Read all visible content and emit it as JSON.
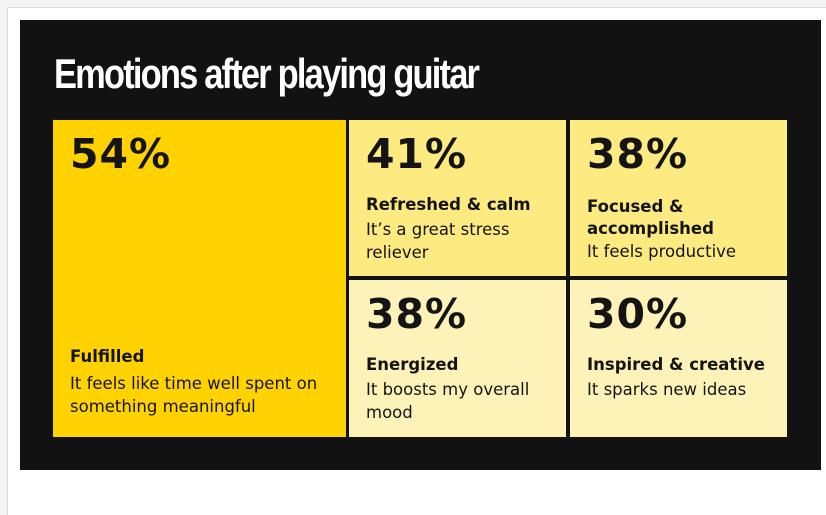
{
  "title": "Emotions after playing guitar",
  "colors": {
    "background": "#121212",
    "title_text": "#ffffff",
    "tile_text": "#141414",
    "level_1": "#ffd200",
    "level_2": "#fdea80",
    "level_3": "#fdf3b8"
  },
  "chart_data": {
    "type": "treemap",
    "title": "Emotions after playing guitar",
    "unit": "%",
    "items": [
      {
        "percent_label": "54%",
        "value": 54,
        "label": "Fulfilled",
        "description": "It feels like time well spent on something meaningful"
      },
      {
        "percent_label": "41%",
        "value": 41,
        "label": "Refreshed & calm",
        "description": "It’s a great stress reliever"
      },
      {
        "percent_label": "38%",
        "value": 38,
        "label": "Focused & accomplished",
        "description": "It feels productive"
      },
      {
        "percent_label": "38%",
        "value": 38,
        "label": "Energized",
        "description": "It boosts my overall mood"
      },
      {
        "percent_label": "30%",
        "value": 30,
        "label": "Inspired & creative",
        "description": "It sparks new ideas"
      }
    ]
  }
}
